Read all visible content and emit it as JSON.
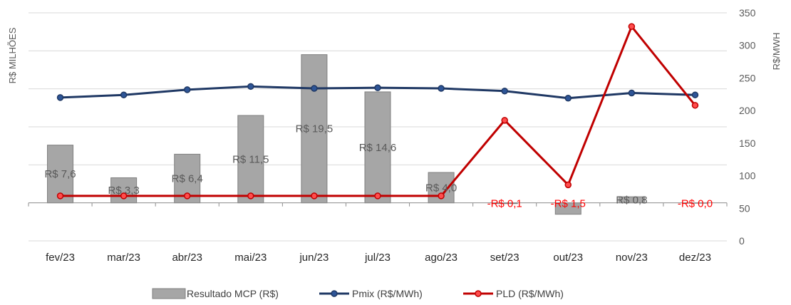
{
  "chart_data": {
    "type": "bar+line",
    "categories": [
      "fev/23",
      "mar/23",
      "abr/23",
      "mai/23",
      "jun/23",
      "jul/23",
      "ago/23",
      "set/23",
      "out/23",
      "nov/23",
      "dez/23"
    ],
    "bar_series": {
      "name": "Resultado MCP (R$)",
      "values": [
        7.6,
        3.3,
        6.4,
        11.5,
        19.5,
        14.6,
        4.0,
        -0.1,
        -1.5,
        0.8,
        0.0
      ],
      "labels": [
        "R$ 7,6",
        "R$ 3,3",
        "R$ 6,4",
        "R$ 11,5",
        "R$ 19,5",
        "R$ 14,6",
        "R$ 4,0",
        "-R$ 0,1",
        "-R$ 1,5",
        "R$ 0,8",
        "-R$ 0,0"
      ],
      "color": "#a6a6a6"
    },
    "line_series": [
      {
        "name": "Pmix (R$/MWh)",
        "values": [
          220,
          224,
          232,
          237,
          234,
          235,
          234,
          230,
          219,
          227,
          224
        ],
        "color": "#1f3864"
      },
      {
        "name": "PLD (R$/MWh)",
        "values": [
          69,
          69,
          69,
          69,
          69,
          69,
          69,
          185,
          86,
          329,
          208
        ],
        "color": "#c00000"
      }
    ],
    "ylabel": "R$ MILHÕES",
    "y2label": "R$/MWH",
    "y_left_range": [
      -5,
      25
    ],
    "y2_range": [
      0,
      350
    ],
    "y2_ticks": [
      "0",
      "50",
      "100",
      "150",
      "200",
      "250",
      "300",
      "350"
    ],
    "grid": true,
    "legend_position": "bottom"
  }
}
